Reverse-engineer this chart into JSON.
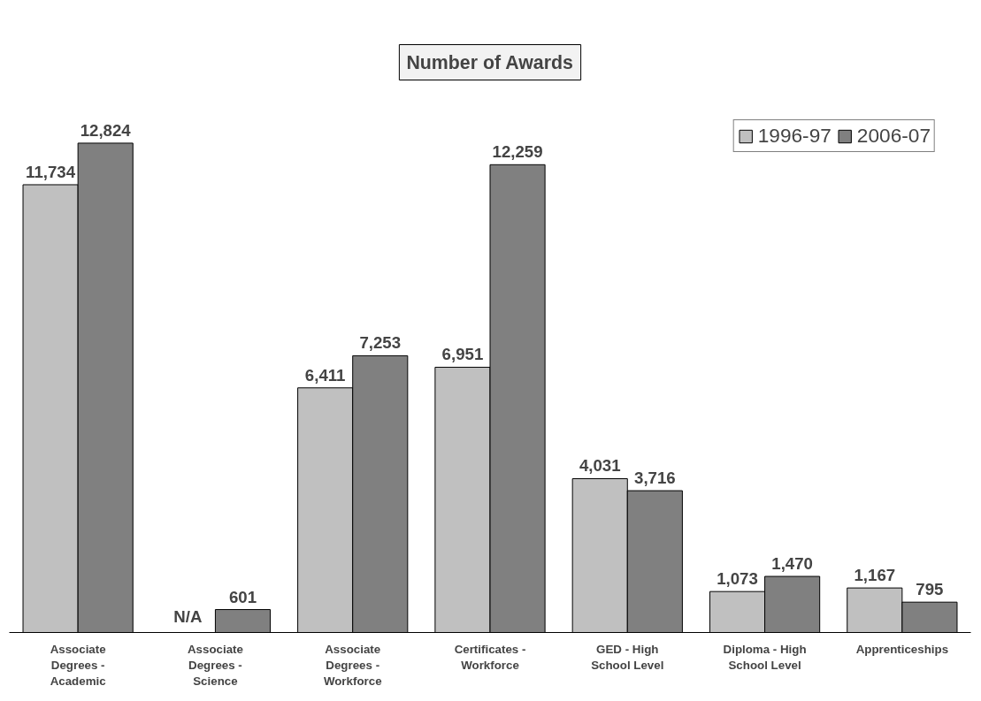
{
  "chart_data": {
    "type": "bar",
    "title": "Number of Awards",
    "categories": [
      "Associate Degrees - Academic",
      "Associate Degrees - Science",
      "Associate Degrees - Workforce",
      "Certificates - Workforce",
      "GED - High School Level",
      "Diploma - High School Level",
      "Apprenticeships"
    ],
    "series": [
      {
        "name": "1996-97",
        "color": "#c0c0c0",
        "values": [
          11734,
          null,
          6411,
          6951,
          4031,
          1073,
          1167
        ],
        "value_labels": [
          "11,734",
          "N/A",
          "6,411",
          "6,951",
          "4,031",
          "1,073",
          "1,167"
        ]
      },
      {
        "name": "2006-07",
        "color": "#808080",
        "values": [
          12824,
          601,
          7253,
          12259,
          3716,
          1470,
          795
        ],
        "value_labels": [
          "12,824",
          "601",
          "7,253",
          "12,259",
          "3,716",
          "1,470",
          "795"
        ]
      }
    ],
    "legend": "top right",
    "tick_labels": "x",
    "grid": false
  }
}
